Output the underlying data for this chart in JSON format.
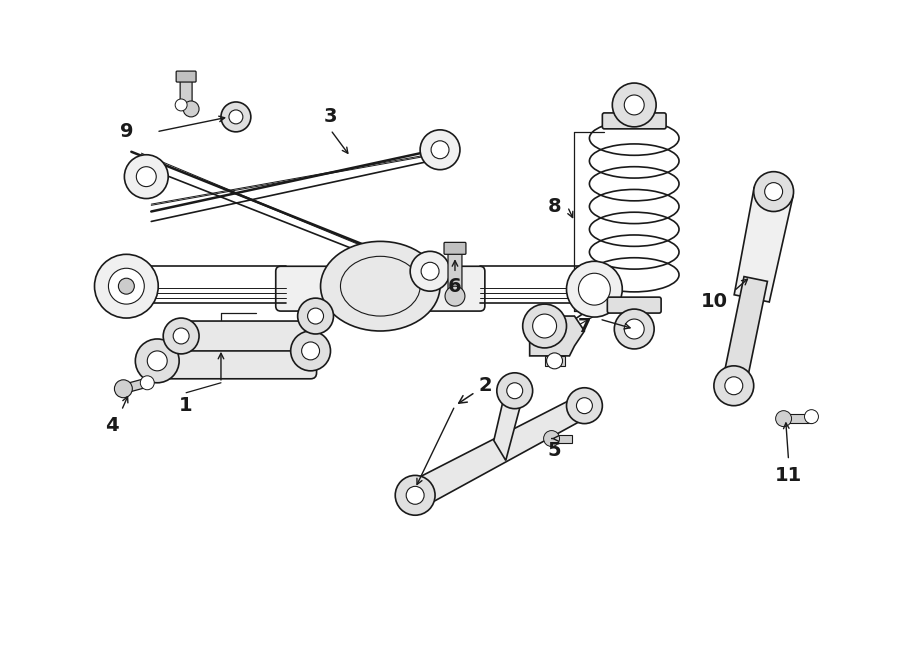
{
  "bg_color": "#ffffff",
  "line_color": "#1a1a1a",
  "fig_width": 9.0,
  "fig_height": 6.61,
  "label_fontsize": 14,
  "label_fontweight": "bold"
}
